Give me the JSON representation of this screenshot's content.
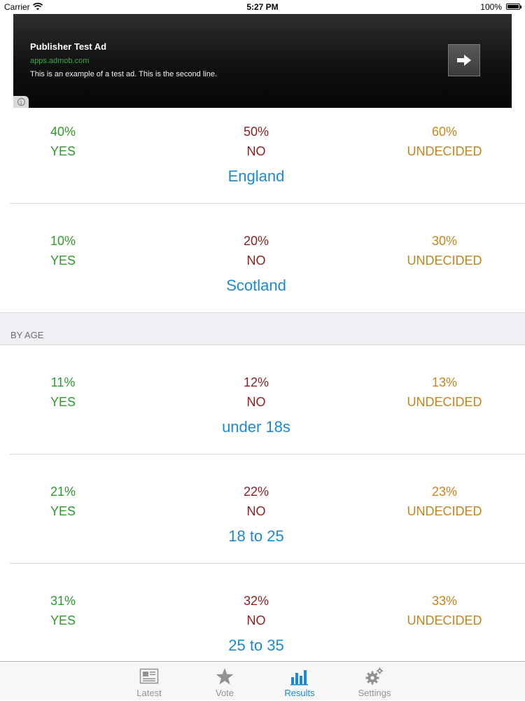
{
  "status_bar": {
    "carrier": "Carrier",
    "time": "5:27 PM",
    "battery": "100%"
  },
  "ad": {
    "title": "Publisher Test Ad",
    "url": "apps.admob.com",
    "description": "This is an example of a test ad. This is the second line.",
    "info_glyph": "i",
    "button_icon": "arrow-right-icon"
  },
  "regions": [
    {
      "name": "England",
      "yes": "40%",
      "no": "50%",
      "undecided": "60%"
    },
    {
      "name": "Scotland",
      "yes": "10%",
      "no": "20%",
      "undecided": "30%"
    }
  ],
  "section_header": "BY AGE",
  "ages": [
    {
      "name": "under 18s",
      "yes": "11%",
      "no": "12%",
      "undecided": "13%"
    },
    {
      "name": "18 to 25",
      "yes": "21%",
      "no": "22%",
      "undecided": "23%"
    },
    {
      "name": "25 to 35",
      "yes": "31%",
      "no": "32%",
      "undecided": "33%"
    }
  ],
  "labels": {
    "yes": "YES",
    "no": "NO",
    "undecided": "UNDECIDED"
  },
  "colors": {
    "yes": "#2e9a2e",
    "no": "#8c1e1e",
    "undecided": "#c8841c",
    "name": "#1a8ad4",
    "tab_active": "#1a8ad4"
  },
  "tabs": [
    {
      "label": "Latest",
      "icon": "newspaper-icon",
      "active": false
    },
    {
      "label": "Vote",
      "icon": "star-icon",
      "active": false
    },
    {
      "label": "Results",
      "icon": "bar-chart-icon",
      "active": true
    },
    {
      "label": "Settings",
      "icon": "gear-icon",
      "active": false
    }
  ]
}
